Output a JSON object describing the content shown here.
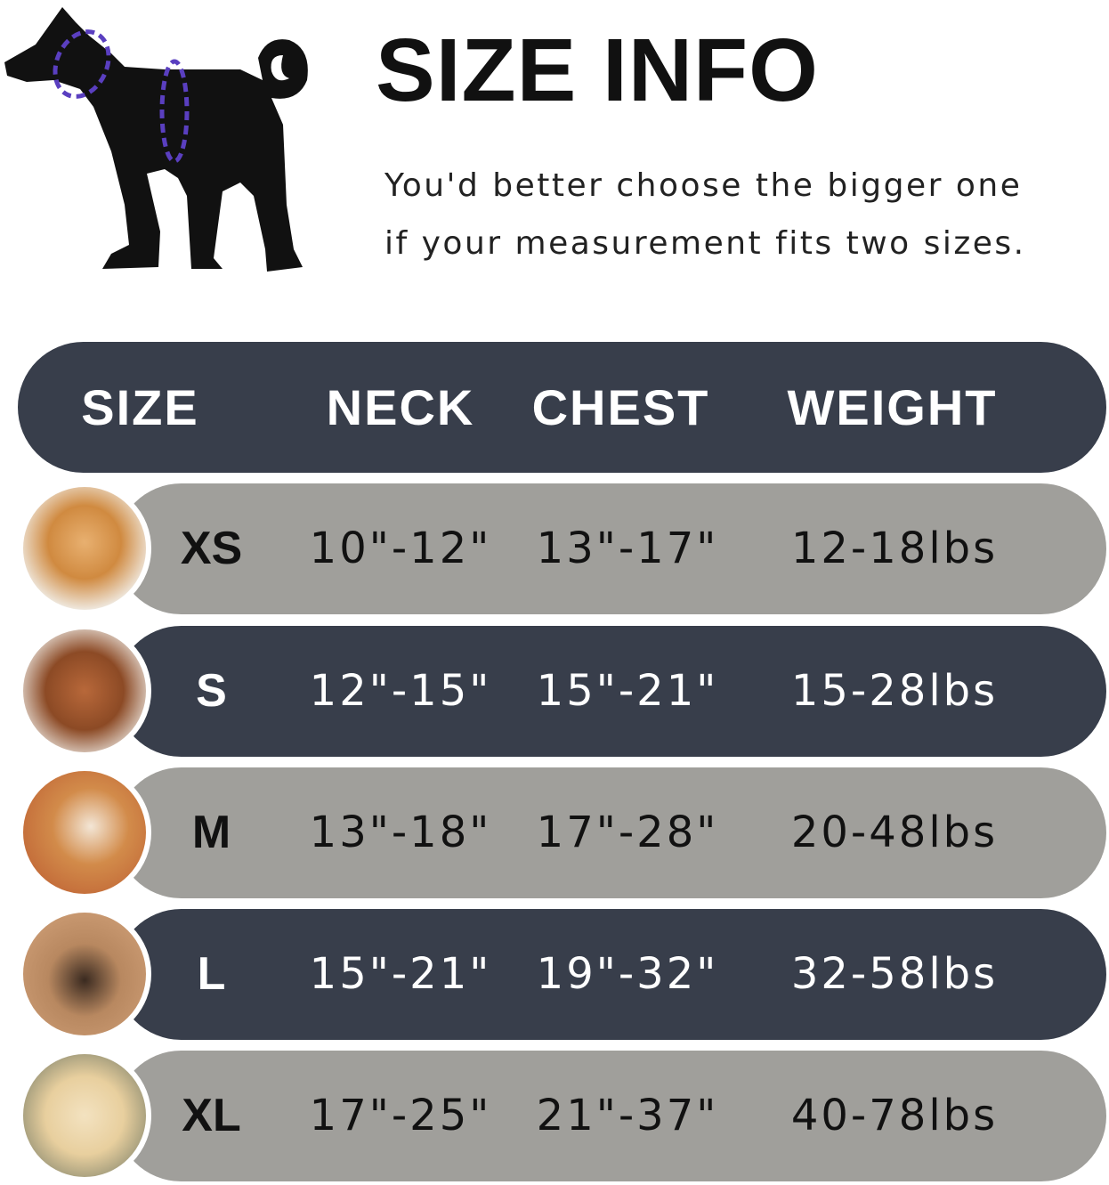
{
  "title": "SIZE INFO",
  "subtitle": [
    "You'd better choose the bigger one",
    "if your measurement fits two sizes."
  ],
  "colors": {
    "dark_row": "#383e4b",
    "light_row": "#a09f9b",
    "measure_line": "#5a3fc0"
  },
  "table": {
    "headers": [
      "SIZE",
      "NECK",
      "CHEST",
      "WEIGHT"
    ],
    "rows": [
      {
        "size": "XS",
        "neck": "10\"-12\"",
        "chest": "13\"-17\"",
        "weight": "12-18lbs",
        "photo": "pomeranian-photo"
      },
      {
        "size": "S",
        "neck": "12\"-15\"",
        "chest": "15\"-21\"",
        "weight": "15-28lbs",
        "photo": "poodle-photo"
      },
      {
        "size": "M",
        "neck": "13\"-18\"",
        "chest": "17\"-28\"",
        "weight": "20-48lbs",
        "photo": "shiba-inu-photo"
      },
      {
        "size": "L",
        "neck": "15\"-21\"",
        "chest": "19\"-32\"",
        "weight": "32-58lbs",
        "photo": "french-bulldog-photo"
      },
      {
        "size": "XL",
        "neck": "17\"-25\"",
        "chest": "21\"-37\"",
        "weight": "40-78lbs",
        "photo": "labrador-photo"
      }
    ]
  }
}
